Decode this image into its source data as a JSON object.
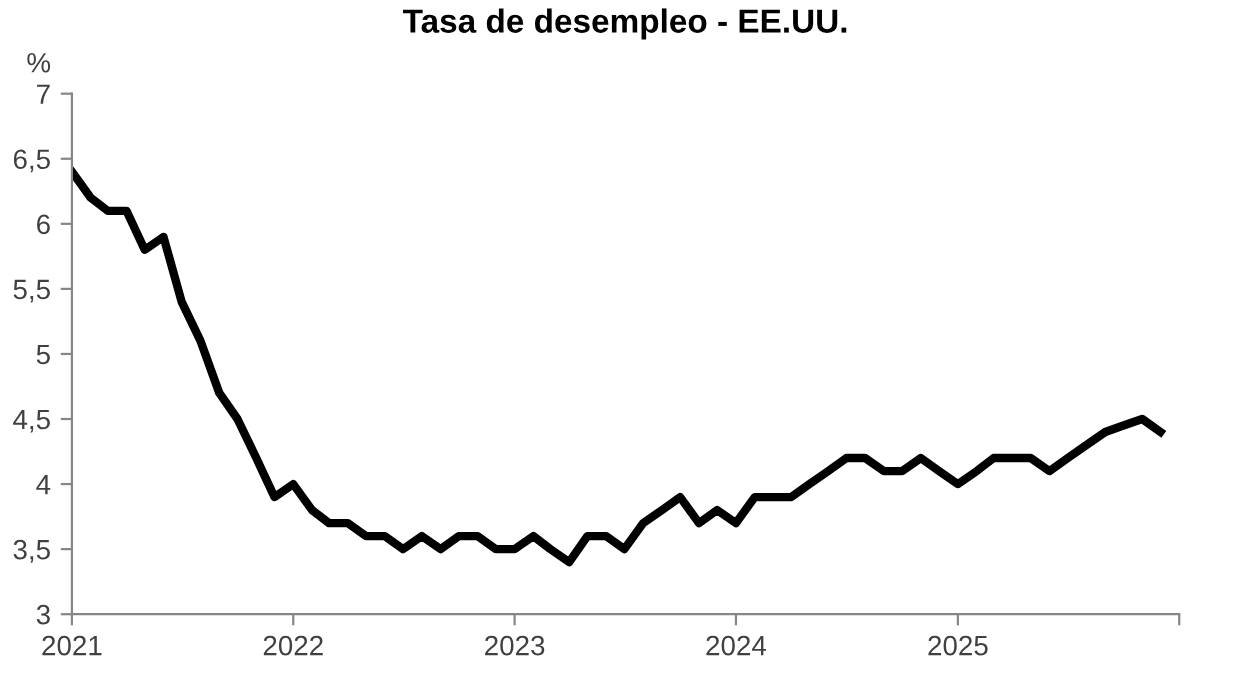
{
  "chart_data": {
    "type": "line",
    "title": "Tasa de desempleo - EE.UU.",
    "ylabel": "%",
    "x": [
      "2021-01",
      "2021-02",
      "2021-03",
      "2021-04",
      "2021-05",
      "2021-06",
      "2021-07",
      "2021-08",
      "2021-09",
      "2021-10",
      "2021-11",
      "2021-12",
      "2022-01",
      "2022-02",
      "2022-03",
      "2022-04",
      "2022-05",
      "2022-06",
      "2022-07",
      "2022-08",
      "2022-09",
      "2022-10",
      "2022-11",
      "2022-12",
      "2023-01",
      "2023-02",
      "2023-03",
      "2023-04",
      "2023-05",
      "2023-06",
      "2023-07",
      "2023-08",
      "2023-09",
      "2023-10",
      "2023-11",
      "2023-12",
      "2024-01",
      "2024-02",
      "2024-03",
      "2024-04",
      "2024-05",
      "2024-06",
      "2024-07",
      "2024-08",
      "2024-09",
      "2024-10",
      "2024-11",
      "2024-12",
      "2025-01",
      "2025-02",
      "2025-03",
      "2025-04",
      "2025-05",
      "2025-06",
      "2025-07",
      "2025-08",
      "2025-09",
      "2025-10",
      "2025-11",
      "2025-12"
    ],
    "series": [
      {
        "color": "#000000",
        "values": [
          6.4,
          6.2,
          6.1,
          6.1,
          5.8,
          5.9,
          5.4,
          5.1,
          4.7,
          4.5,
          4.2,
          3.9,
          4.0,
          3.8,
          3.7,
          3.7,
          3.6,
          3.6,
          3.5,
          3.6,
          3.5,
          3.6,
          3.6,
          3.5,
          3.5,
          3.6,
          3.5,
          3.4,
          3.6,
          3.6,
          3.5,
          3.7,
          3.8,
          3.9,
          3.7,
          3.8,
          3.7,
          3.9,
          3.9,
          3.9,
          4.0,
          4.1,
          4.2,
          4.2,
          4.1,
          4.1,
          4.2,
          4.1,
          4.0,
          4.1,
          4.2,
          4.2,
          4.2,
          4.1,
          4.2,
          4.3,
          4.4,
          4.45,
          4.5,
          4.4
        ]
      }
    ],
    "xlim": [
      "2021-01",
      "2026-01"
    ],
    "xticks": [
      {
        "value": "2021-01",
        "label": "2021"
      },
      {
        "value": "2022-01",
        "label": "2022"
      },
      {
        "value": "2023-01",
        "label": "2023"
      },
      {
        "value": "2024-01",
        "label": "2024"
      },
      {
        "value": "2025-01",
        "label": "2025"
      },
      {
        "value": "2026-01",
        "label": null
      }
    ],
    "ylim": [
      3,
      7
    ],
    "yticks": [
      3,
      {
        "value": 3.5,
        "label": "3,5"
      },
      4,
      {
        "value": 4.5,
        "label": "4,5"
      },
      5,
      {
        "value": 5.5,
        "label": "5,5"
      },
      6,
      {
        "value": 6.5,
        "label": "6,5"
      },
      7
    ],
    "grid": false,
    "marker": "none",
    "line_style": "solid"
  }
}
